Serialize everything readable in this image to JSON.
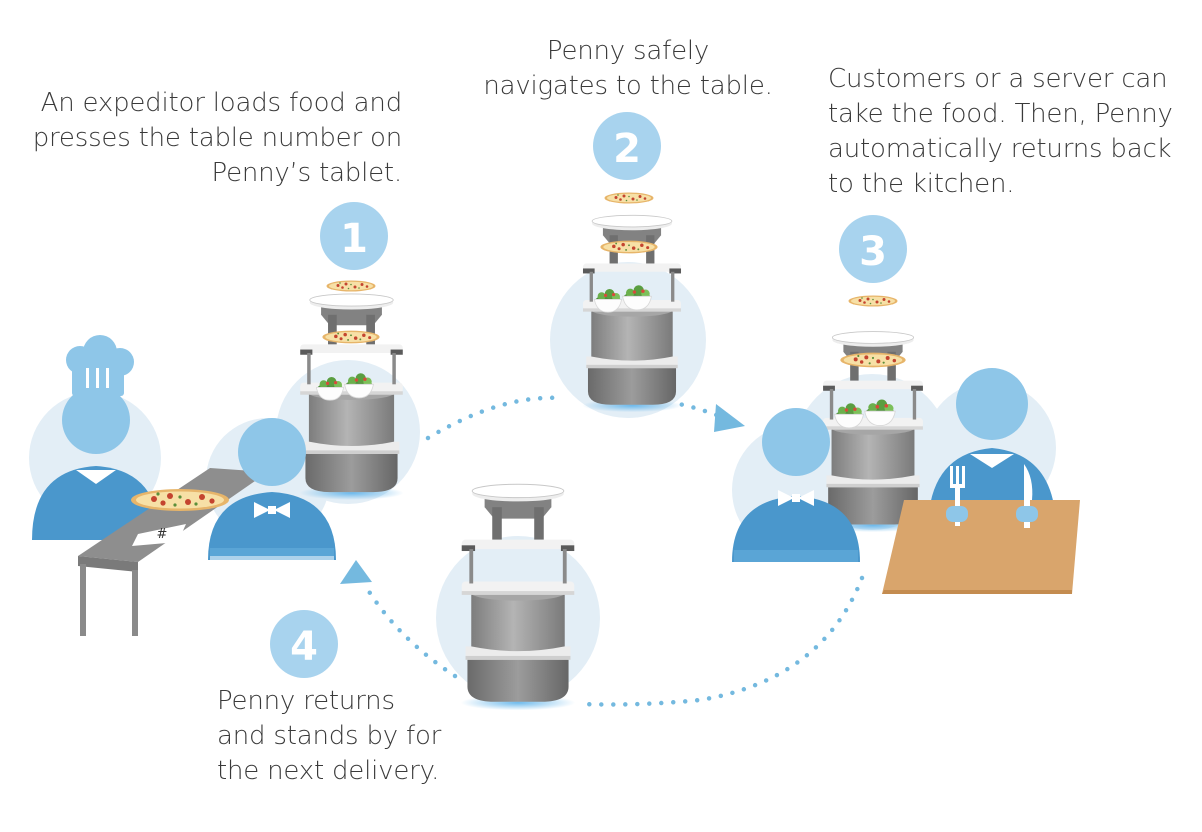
{
  "steps": [
    {
      "number": "1",
      "lines": [
        "An expeditor loads food and",
        "presses the table number on",
        "Penny’s tablet."
      ]
    },
    {
      "number": "2",
      "lines": [
        "Penny safely",
        "navigates to the table."
      ]
    },
    {
      "number": "3",
      "lines": [
        "Customers or a server can",
        "take the food. Then, Penny",
        "automatically returns back",
        "to the kitchen."
      ]
    },
    {
      "number": "4",
      "lines": [
        "Penny returns",
        "and stands by for",
        "the next delivery."
      ]
    }
  ],
  "table_tag": "#",
  "colors": {
    "badge": "#a8d3ee",
    "person": "#8ec6e8",
    "person_dark": "#4a97cc",
    "halo": "#e3eef6",
    "dots": "#74b9df",
    "robot_body": "#9a9a9a",
    "robot_dark": "#6f6f6f",
    "table_wood": "#d9a56c",
    "text": "#3a3a3a"
  }
}
